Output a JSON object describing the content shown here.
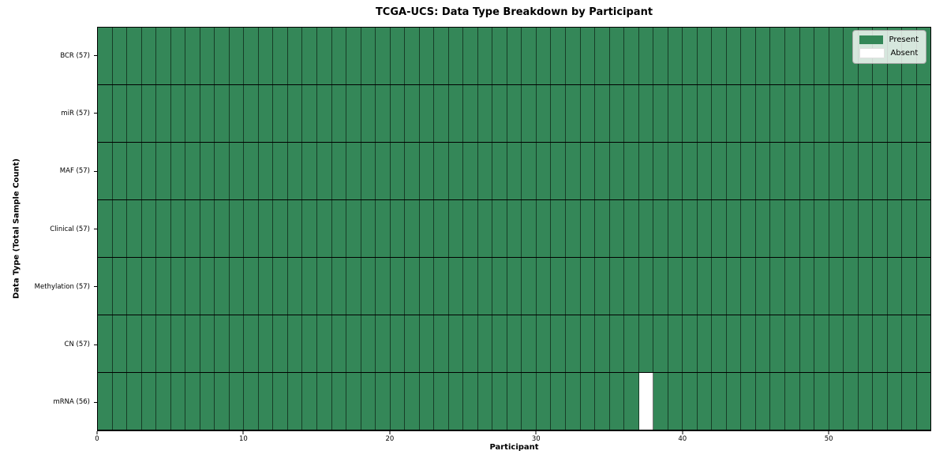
{
  "chart_data": {
    "type": "heatmap",
    "title": "TCGA-UCS: Data Type Breakdown by Participant",
    "xlabel": "Participant",
    "ylabel": "Data Type (Total Sample Count)",
    "x_ticks": [
      0,
      10,
      20,
      30,
      40,
      50
    ],
    "x_range": [
      0,
      57
    ],
    "n_participants": 57,
    "rows": [
      {
        "label": "BCR (57)",
        "data_type": "BCR",
        "count": 57,
        "absent_participants": []
      },
      {
        "label": "miR (57)",
        "data_type": "miR",
        "count": 57,
        "absent_participants": []
      },
      {
        "label": "MAF (57)",
        "data_type": "MAF",
        "count": 57,
        "absent_participants": []
      },
      {
        "label": "Clinical (57)",
        "data_type": "Clinical",
        "count": 57,
        "absent_participants": []
      },
      {
        "label": "Methylation (57)",
        "data_type": "Methylation",
        "count": 57,
        "absent_participants": []
      },
      {
        "label": "CN (57)",
        "data_type": "CN",
        "count": 57,
        "absent_participants": []
      },
      {
        "label": "mRNA (56)",
        "data_type": "mRNA",
        "count": 56,
        "absent_participants": [
          37
        ]
      }
    ],
    "legend": [
      {
        "label": "Present",
        "color": "#348758"
      },
      {
        "label": "Absent",
        "color": "#ffffff"
      }
    ],
    "legend_position": "upper right",
    "colors": {
      "present": "#348758",
      "absent": "#ffffff",
      "cell_border": "rgba(0,0,0,0.55)",
      "row_border": "#000000",
      "spine": "#000000",
      "background": "#ffffff"
    },
    "grid": "cell-borders"
  }
}
